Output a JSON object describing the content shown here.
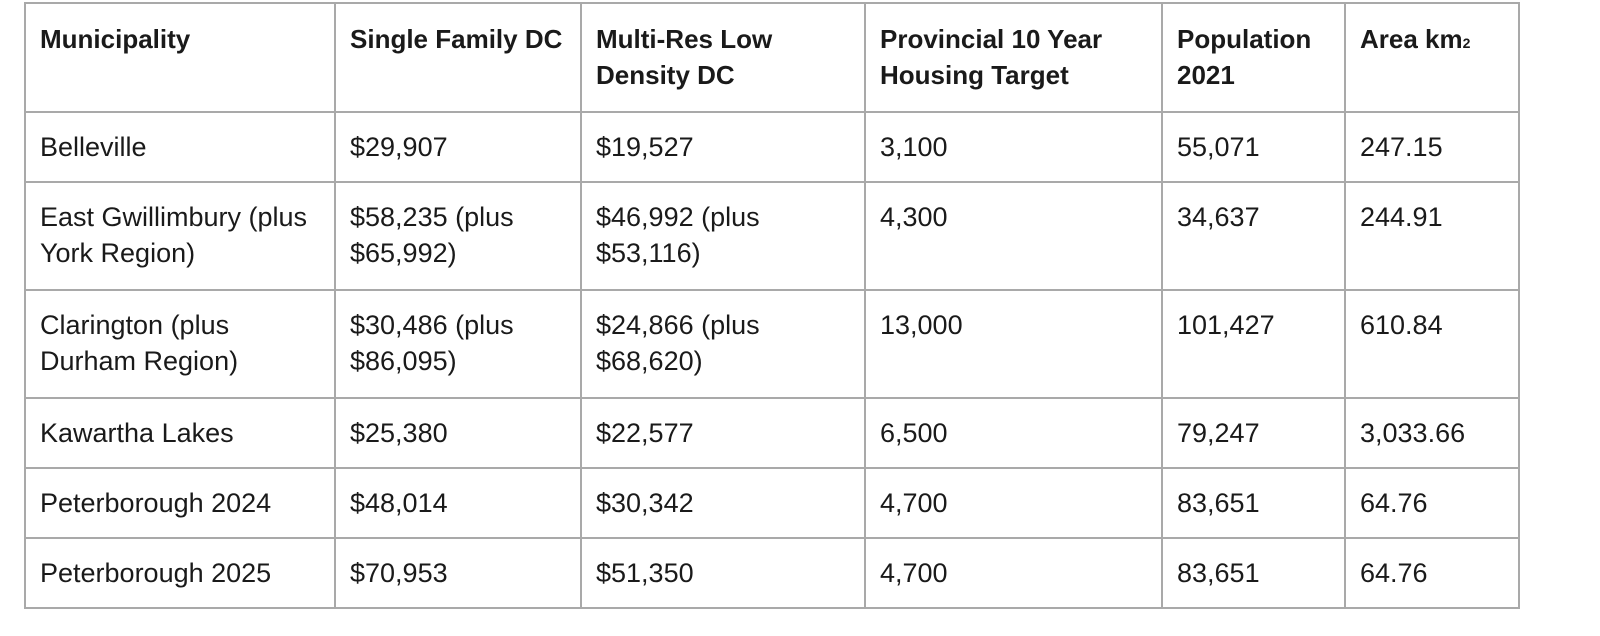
{
  "table": {
    "headers": {
      "municipality": "Municipality",
      "single_family_dc": "Single Family DC",
      "multi_res_low_density_dc": "Multi-Res Low Density DC",
      "provincial_target": "Provincial 10 Year Housing Target",
      "population_2021": "Population 2021",
      "area_main": "Area km",
      "area_sub": "2"
    },
    "rows": [
      {
        "municipality": "Belleville",
        "single_family_dc": "$29,907",
        "multi_res_low_density_dc": "$19,527",
        "provincial_target": "3,100",
        "population_2021": "55,071",
        "area": "247.15"
      },
      {
        "municipality": "East Gwillimbury (plus York Region)",
        "single_family_dc": "$58,235 (plus $65,992)",
        "multi_res_low_density_dc": "$46,992 (plus $53,116)",
        "provincial_target": "4,300",
        "population_2021": "34,637",
        "area": "244.91"
      },
      {
        "municipality": "Clarington (plus Durham Region)",
        "single_family_dc": "$30,486 (plus $86,095)",
        "multi_res_low_density_dc": "$24,866 (plus $68,620)",
        "provincial_target": "13,000",
        "population_2021": "101,427",
        "area": "610.84"
      },
      {
        "municipality": "Kawartha Lakes",
        "single_family_dc": "$25,380",
        "multi_res_low_density_dc": "$22,577",
        "provincial_target": "6,500",
        "population_2021": "79,247",
        "area": "3,033.66"
      },
      {
        "municipality": "Peterborough 2024",
        "single_family_dc": "$48,014",
        "multi_res_low_density_dc": "$30,342",
        "provincial_target": "4,700",
        "population_2021": "83,651",
        "area": "64.76"
      },
      {
        "municipality": "Peterborough 2025",
        "single_family_dc": "$70,953",
        "multi_res_low_density_dc": "$51,350",
        "provincial_target": "4,700",
        "population_2021": "83,651",
        "area": "64.76"
      }
    ],
    "colors": {
      "border": "#a9a9a9",
      "text": "#1a1a1a",
      "background": "#ffffff"
    }
  }
}
